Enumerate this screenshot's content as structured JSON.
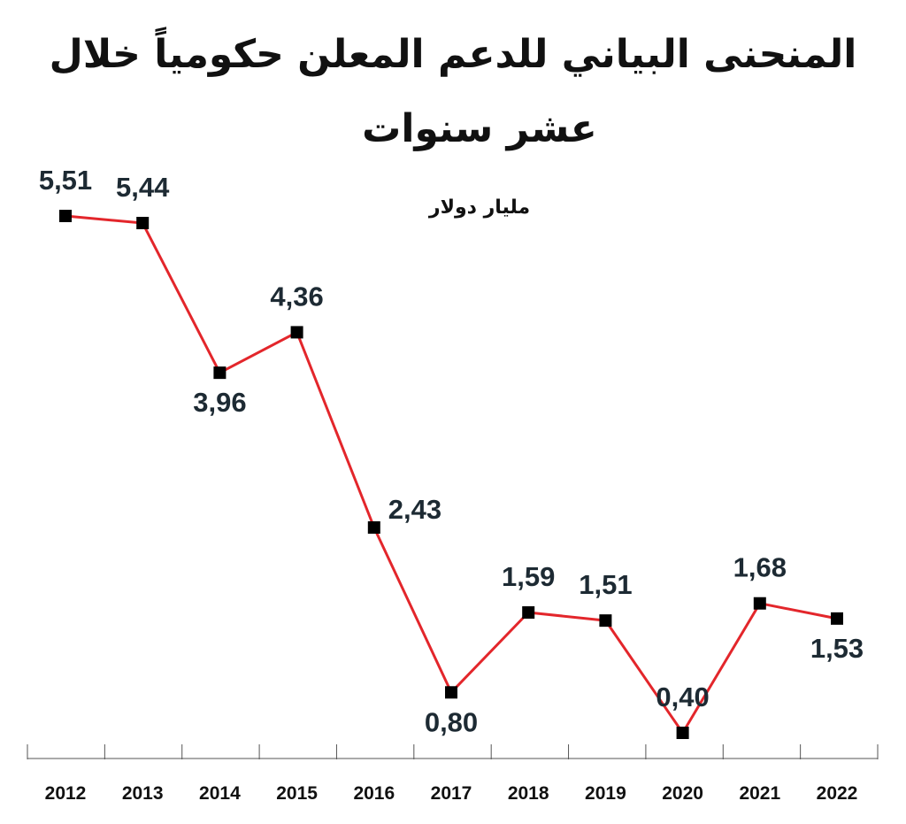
{
  "chart_data": {
    "type": "line",
    "title_line1": "المنحنى البياني للدعم المعلن حكومياً خلال",
    "title_line2": "عشر سنوات",
    "unit": "مليار دولار",
    "categories": [
      "2012",
      "2013",
      "2014",
      "2015",
      "2016",
      "2017",
      "2018",
      "2019",
      "2020",
      "2021",
      "2022"
    ],
    "values": [
      5.51,
      5.44,
      3.96,
      4.36,
      2.43,
      0.8,
      1.59,
      1.51,
      0.4,
      1.68,
      1.53
    ],
    "value_labels": [
      "5,51",
      "5,44",
      "3,96",
      "4,36",
      "2,43",
      "0,80",
      "1,59",
      "1,51",
      "0,40",
      "1,68",
      "1,53"
    ],
    "label_placement": [
      "above",
      "above",
      "below",
      "above",
      "right",
      "below",
      "above",
      "above",
      "above",
      "above",
      "below"
    ],
    "line_color": "#e3262b",
    "marker_color": "#000000",
    "ylim": [
      0,
      6
    ],
    "grid": false,
    "legend": "none"
  }
}
